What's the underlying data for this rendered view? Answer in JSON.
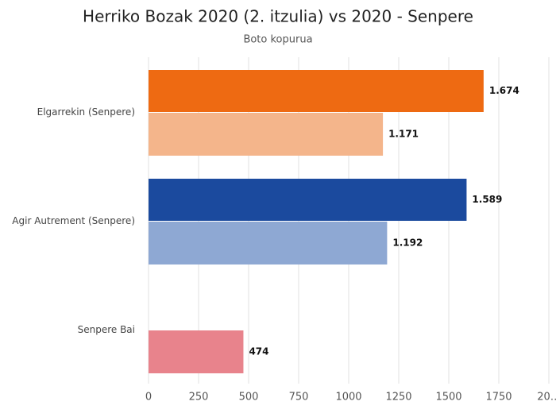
{
  "chart_data": {
    "type": "hbar",
    "title": "Herriko Bozak 2020 (2. itzulia) vs 2020 - Senpere",
    "subtitle": "Boto kopurua",
    "categories": [
      "Elgarrekin (Senpere)",
      "Agir Autrement (Senpere)",
      "Senpere Bai"
    ],
    "series": [
      {
        "values": [
          1674,
          1589,
          null
        ],
        "value_labels": [
          "1.674",
          "1.589",
          null
        ],
        "colors": [
          "#ee6a12",
          "#1b4a9e",
          null
        ]
      },
      {
        "values": [
          1171,
          1192,
          474
        ],
        "value_labels": [
          "1.171",
          "1.192",
          "474"
        ],
        "colors": [
          "#f4b58b",
          "#8ea8d3",
          "#e8838c"
        ]
      }
    ],
    "xlim": [
      0,
      2000
    ],
    "xticks": [
      0,
      250,
      500,
      750,
      1000,
      1250,
      1500,
      1750,
      {
        "value": 2000,
        "label": "20…"
      }
    ],
    "grid": true
  }
}
